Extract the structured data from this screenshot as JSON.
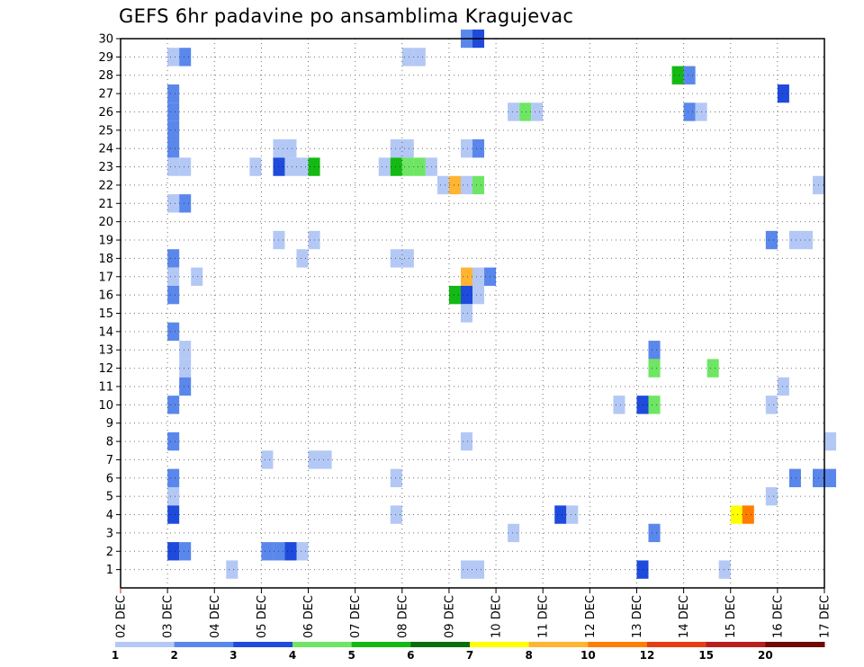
{
  "chart_data": {
    "type": "heatmap",
    "title": "GEFS 6hr padavine po ansamblima Kragujevac",
    "xlabel": "",
    "ylabel": "",
    "x_dates": [
      "02 DEC",
      "03 DEC",
      "04 DEC",
      "05 DEC",
      "06 DEC",
      "07 DEC",
      "08 DEC",
      "09 DEC",
      "10 DEC",
      "11 DEC",
      "12 DEC",
      "13 DEC",
      "14 DEC",
      "15 DEC",
      "16 DEC",
      "17 DEC"
    ],
    "x_step_hours": 6,
    "xlim_steps": [
      0,
      60
    ],
    "y_members": [
      "1",
      "2",
      "3",
      "4",
      "5",
      "6",
      "7",
      "8",
      "9",
      "10",
      "11",
      "12",
      "13",
      "14",
      "15",
      "16",
      "17",
      "18",
      "19",
      "20",
      "21",
      "22",
      "23",
      "24",
      "25",
      "26",
      "27",
      "28",
      "29",
      "30"
    ],
    "ylim": [
      0,
      30
    ],
    "legend": {
      "placement": "bottom",
      "labels": [
        "1",
        "2",
        "3",
        "4",
        "5",
        "6",
        "7",
        "8",
        "10",
        "12",
        "15",
        "20"
      ],
      "colors": [
        "#b4c8f5",
        "#5a87eb",
        "#1e4bdc",
        "#6ee664",
        "#14b914",
        "#0a6e0a",
        "#ffff00",
        "#ffb432",
        "#ff7d00",
        "#e63c14",
        "#b91e1e",
        "#6e0a0a"
      ]
    },
    "cells": [
      {
        "member": 30,
        "step": 29,
        "c": 1
      },
      {
        "member": 30,
        "step": 30,
        "c": 2
      },
      {
        "member": 29,
        "step": 4,
        "c": 0
      },
      {
        "member": 29,
        "step": 5,
        "c": 1
      },
      {
        "member": 29,
        "step": 24,
        "c": 0
      },
      {
        "member": 29,
        "step": 25,
        "c": 0
      },
      {
        "member": 28,
        "step": 47,
        "c": 4
      },
      {
        "member": 28,
        "step": 48,
        "c": 1
      },
      {
        "member": 27,
        "step": 4,
        "c": 1
      },
      {
        "member": 27,
        "step": 56,
        "c": 2
      },
      {
        "member": 26,
        "step": 4,
        "c": 1
      },
      {
        "member": 26,
        "step": 33,
        "c": 0
      },
      {
        "member": 26,
        "step": 34,
        "c": 3
      },
      {
        "member": 26,
        "step": 35,
        "c": 0
      },
      {
        "member": 26,
        "step": 48,
        "c": 1
      },
      {
        "member": 26,
        "step": 49,
        "c": 0
      },
      {
        "member": 25,
        "step": 4,
        "c": 1
      },
      {
        "member": 24,
        "step": 4,
        "c": 1
      },
      {
        "member": 24,
        "step": 13,
        "c": 0
      },
      {
        "member": 24,
        "step": 14,
        "c": 0
      },
      {
        "member": 24,
        "step": 23,
        "c": 0
      },
      {
        "member": 24,
        "step": 24,
        "c": 0
      },
      {
        "member": 24,
        "step": 29,
        "c": 0
      },
      {
        "member": 24,
        "step": 30,
        "c": 1
      },
      {
        "member": 23,
        "step": 4,
        "c": 0
      },
      {
        "member": 23,
        "step": 5,
        "c": 0
      },
      {
        "member": 23,
        "step": 11,
        "c": 0
      },
      {
        "member": 23,
        "step": 13,
        "c": 2
      },
      {
        "member": 23,
        "step": 14,
        "c": 0
      },
      {
        "member": 23,
        "step": 15,
        "c": 0
      },
      {
        "member": 23,
        "step": 16,
        "c": 4
      },
      {
        "member": 23,
        "step": 22,
        "c": 0
      },
      {
        "member": 23,
        "step": 23,
        "c": 4
      },
      {
        "member": 23,
        "step": 24,
        "c": 3
      },
      {
        "member": 23,
        "step": 25,
        "c": 3
      },
      {
        "member": 23,
        "step": 26,
        "c": 0
      },
      {
        "member": 22,
        "step": 27,
        "c": 0
      },
      {
        "member": 22,
        "step": 28,
        "c": 7
      },
      {
        "member": 22,
        "step": 29,
        "c": 0
      },
      {
        "member": 22,
        "step": 30,
        "c": 3
      },
      {
        "member": 22,
        "step": 59,
        "c": 0
      },
      {
        "member": 21,
        "step": 4,
        "c": 0
      },
      {
        "member": 21,
        "step": 5,
        "c": 1
      },
      {
        "member": 19,
        "step": 13,
        "c": 0
      },
      {
        "member": 19,
        "step": 16,
        "c": 0
      },
      {
        "member": 19,
        "step": 55,
        "c": 1
      },
      {
        "member": 19,
        "step": 57,
        "c": 0
      },
      {
        "member": 19,
        "step": 58,
        "c": 0
      },
      {
        "member": 18,
        "step": 4,
        "c": 1
      },
      {
        "member": 18,
        "step": 15,
        "c": 0
      },
      {
        "member": 18,
        "step": 23,
        "c": 0
      },
      {
        "member": 18,
        "step": 24,
        "c": 0
      },
      {
        "member": 17,
        "step": 4,
        "c": 0
      },
      {
        "member": 17,
        "step": 6,
        "c": 0
      },
      {
        "member": 17,
        "step": 29,
        "c": 7
      },
      {
        "member": 17,
        "step": 30,
        "c": 0
      },
      {
        "member": 17,
        "step": 31,
        "c": 1
      },
      {
        "member": 16,
        "step": 4,
        "c": 1
      },
      {
        "member": 16,
        "step": 28,
        "c": 4
      },
      {
        "member": 16,
        "step": 29,
        "c": 2
      },
      {
        "member": 16,
        "step": 30,
        "c": 0
      },
      {
        "member": 15,
        "step": 29,
        "c": 0
      },
      {
        "member": 14,
        "step": 4,
        "c": 1
      },
      {
        "member": 13,
        "step": 5,
        "c": 0
      },
      {
        "member": 13,
        "step": 45,
        "c": 1
      },
      {
        "member": 12,
        "step": 5,
        "c": 0
      },
      {
        "member": 12,
        "step": 45,
        "c": 3
      },
      {
        "member": 12,
        "step": 50,
        "c": 3
      },
      {
        "member": 11,
        "step": 5,
        "c": 1
      },
      {
        "member": 11,
        "step": 56,
        "c": 0
      },
      {
        "member": 10,
        "step": 4,
        "c": 1
      },
      {
        "member": 10,
        "step": 42,
        "c": 0
      },
      {
        "member": 10,
        "step": 44,
        "c": 2
      },
      {
        "member": 10,
        "step": 45,
        "c": 3
      },
      {
        "member": 10,
        "step": 55,
        "c": 0
      },
      {
        "member": 8,
        "step": 4,
        "c": 1
      },
      {
        "member": 8,
        "step": 29,
        "c": 0
      },
      {
        "member": 8,
        "step": 60,
        "c": 0
      },
      {
        "member": 7,
        "step": 12,
        "c": 0
      },
      {
        "member": 7,
        "step": 16,
        "c": 0
      },
      {
        "member": 7,
        "step": 17,
        "c": 0
      },
      {
        "member": 6,
        "step": 4,
        "c": 1
      },
      {
        "member": 6,
        "step": 23,
        "c": 0
      },
      {
        "member": 6,
        "step": 57,
        "c": 1
      },
      {
        "member": 6,
        "step": 59,
        "c": 1
      },
      {
        "member": 6,
        "step": 60,
        "c": 1
      },
      {
        "member": 5,
        "step": 4,
        "c": 0
      },
      {
        "member": 5,
        "step": 55,
        "c": 0
      },
      {
        "member": 4,
        "step": 4,
        "c": 2
      },
      {
        "member": 4,
        "step": 23,
        "c": 0
      },
      {
        "member": 4,
        "step": 37,
        "c": 2
      },
      {
        "member": 4,
        "step": 38,
        "c": 0
      },
      {
        "member": 4,
        "step": 52,
        "c": 6
      },
      {
        "member": 4,
        "step": 53,
        "c": 8
      },
      {
        "member": 3,
        "step": 33,
        "c": 0
      },
      {
        "member": 3,
        "step": 45,
        "c": 1
      },
      {
        "member": 2,
        "step": 4,
        "c": 2
      },
      {
        "member": 2,
        "step": 5,
        "c": 1
      },
      {
        "member": 2,
        "step": 12,
        "c": 1
      },
      {
        "member": 2,
        "step": 13,
        "c": 1
      },
      {
        "member": 2,
        "step": 14,
        "c": 2
      },
      {
        "member": 2,
        "step": 15,
        "c": 0
      },
      {
        "member": 1,
        "step": 9,
        "c": 0
      },
      {
        "member": 1,
        "step": 29,
        "c": 0
      },
      {
        "member": 1,
        "step": 30,
        "c": 0
      },
      {
        "member": 1,
        "step": 44,
        "c": 2
      },
      {
        "member": 1,
        "step": 51,
        "c": 0
      }
    ]
  }
}
